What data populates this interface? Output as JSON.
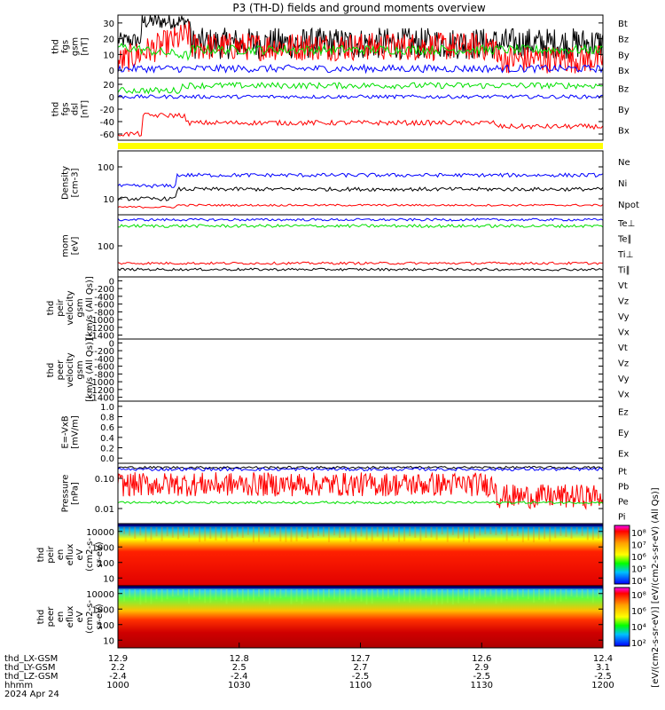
{
  "title": "P3 (TH-D) fields and ground moments overview",
  "colors": {
    "black": "#000000",
    "red": "#ff0000",
    "green": "#00e000",
    "blue": "#0000ff",
    "yellow": "#ffff00"
  },
  "chart_data": [
    {
      "type": "line",
      "panel": "fgs_gsm",
      "ylabel": [
        "thd",
        "fgs",
        "gsm",
        "[nT]"
      ],
      "yticks": [
        "30",
        "20",
        "10",
        "0"
      ],
      "ylim": [
        -5,
        35
      ],
      "series": [
        {
          "name": "Bt",
          "color": "#000000"
        },
        {
          "name": "Bz",
          "color": "#ff0000"
        },
        {
          "name": "By",
          "color": "#00e000"
        },
        {
          "name": "Bx",
          "color": "#0000ff"
        }
      ]
    },
    {
      "type": "line",
      "panel": "fgs_dsl",
      "ylabel": [
        "thd",
        "fgs",
        "dsl",
        "[nT]"
      ],
      "yticks": [
        "20",
        "0",
        "-20",
        "-40",
        "-60"
      ],
      "ylim": [
        -65,
        25
      ],
      "series": [
        {
          "name": "Bz",
          "color": "#ff0000"
        },
        {
          "name": "By",
          "color": "#00e000"
        },
        {
          "name": "Bx",
          "color": "#0000ff"
        }
      ]
    },
    {
      "type": "line",
      "panel": "density",
      "ylabel": [
        "Density",
        "[cm-3]"
      ],
      "yticks": [
        "100",
        "10"
      ],
      "scale": "log",
      "series": [
        {
          "name": "Ne",
          "color": "#ff0000"
        },
        {
          "name": "Ni",
          "color": "#000000"
        },
        {
          "name": "Npot",
          "color": "#0000ff"
        }
      ]
    },
    {
      "type": "line",
      "panel": "temperature",
      "ylabel": [
        "mom",
        "[eV]"
      ],
      "yticks": [
        "100"
      ],
      "scale": "log",
      "series": [
        {
          "name": "Te⊥",
          "color": "#ff0000"
        },
        {
          "name": "Te∥",
          "color": "#000000"
        },
        {
          "name": "Ti⊥",
          "color": "#ff0000"
        },
        {
          "name": "Ti∥",
          "color": "#00e000"
        }
      ]
    },
    {
      "type": "line",
      "panel": "peir_velocity",
      "ylabel": [
        "thd",
        "peir",
        "velocity",
        "gsm",
        "[km/s (All Qs)]"
      ],
      "yticks": [
        "0",
        "-200",
        "-400",
        "-600",
        "-800",
        "-1000",
        "-1200",
        "-1400"
      ],
      "ylim": [
        -1400,
        0
      ],
      "series": [
        {
          "name": "Vt",
          "color": "#000000"
        },
        {
          "name": "Vz",
          "color": "#ff0000"
        },
        {
          "name": "Vy",
          "color": "#00e000"
        },
        {
          "name": "Vx",
          "color": "#0000ff"
        }
      ]
    },
    {
      "type": "line",
      "panel": "peer_velocity",
      "ylabel": [
        "thd",
        "peer",
        "velocity",
        "gsm",
        "[km/s (All Qs)]"
      ],
      "yticks": [
        "0",
        "-200",
        "-400",
        "-600",
        "-800",
        "-1000",
        "-1200",
        "-1400"
      ],
      "ylim": [
        -1400,
        0
      ],
      "series": [
        {
          "name": "Vt",
          "color": "#000000"
        },
        {
          "name": "Vz",
          "color": "#ff0000"
        },
        {
          "name": "Vy",
          "color": "#00e000"
        },
        {
          "name": "Vx",
          "color": "#0000ff"
        }
      ]
    },
    {
      "type": "line",
      "panel": "efield",
      "ylabel": [
        "E=-VxB",
        "[mV/m]"
      ],
      "yticks": [
        "1.0",
        "0.8",
        "0.6",
        "0.4",
        "0.2",
        "0.0"
      ],
      "ylim": [
        0,
        1
      ],
      "series": [
        {
          "name": "Ez",
          "color": "#ff0000"
        },
        {
          "name": "Ey",
          "color": "#00e000"
        },
        {
          "name": "Ex",
          "color": "#0000ff"
        }
      ]
    },
    {
      "type": "line",
      "panel": "pressure",
      "ylabel": [
        "Pressure",
        "[nPa]"
      ],
      "yticks": [
        "0.10",
        "0.01"
      ],
      "scale": "log",
      "series": [
        {
          "name": "Pt",
          "color": "#000000"
        },
        {
          "name": "Pb",
          "color": "#ff0000"
        },
        {
          "name": "Pe",
          "color": "#00e000"
        },
        {
          "name": "Pi",
          "color": "#0000ff"
        }
      ]
    },
    {
      "type": "heatmap",
      "panel": "peir_eflux",
      "ylabel": [
        "thd",
        "peir",
        "en",
        "eflux",
        "eV",
        "(cm2-s-",
        "sr-eV)"
      ],
      "yticks": [
        "10000",
        "1000",
        "100",
        "10"
      ],
      "colorbar_ticks": [
        "10⁸",
        "10⁷",
        "10⁶",
        "10⁵",
        "10⁴"
      ]
    },
    {
      "type": "heatmap",
      "panel": "peer_eflux",
      "ylabel": [
        "thd",
        "peer",
        "en",
        "eflux",
        "eV",
        "(cm2-s-",
        "sr-eV)"
      ],
      "yticks": [
        "10000",
        "1000",
        "100",
        "10"
      ],
      "colorbar_ticks": [
        "10⁸",
        "10⁶",
        "10⁴",
        "10²"
      ]
    }
  ],
  "colorbar_label": "[eV/(cm2-s-sr-eV)] [eV/(cm2-s-sr-eV) (All Qs)]",
  "xaxis": {
    "row_labels": [
      "thd_LX-GSM",
      "thd_LY-GSM",
      "thd_LZ-GSM",
      "hhmm",
      "2024 Apr 24"
    ],
    "columns": [
      {
        "lx": "12.9",
        "ly": "2.2",
        "lz": "-2.4",
        "hhmm": "1000"
      },
      {
        "lx": "12.8",
        "ly": "2.5",
        "lz": "-2.4",
        "hhmm": "1030"
      },
      {
        "lx": "12.7",
        "ly": "2.7",
        "lz": "-2.5",
        "hhmm": "1100"
      },
      {
        "lx": "12.6",
        "ly": "2.9",
        "lz": "-2.5",
        "hhmm": "1130"
      },
      {
        "lx": "12.4",
        "ly": "3.1",
        "lz": "-2.5",
        "hhmm": "1200"
      }
    ]
  }
}
